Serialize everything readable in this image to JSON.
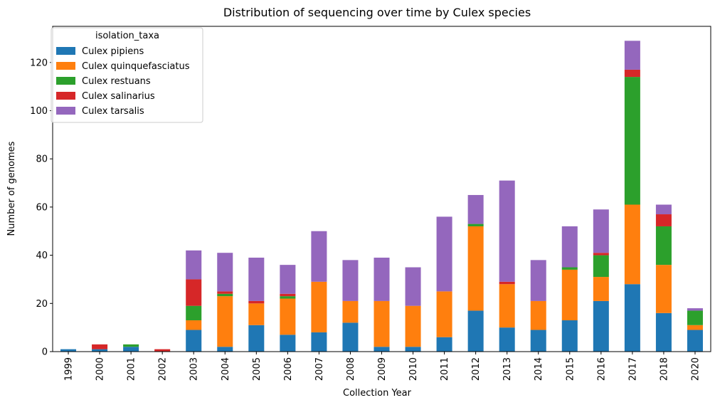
{
  "chart_data": {
    "type": "bar",
    "stacked": true,
    "title": "Distribution of sequencing over time by Culex species",
    "xlabel": "Collection Year",
    "ylabel": "Number of genomes",
    "ylim": [
      0,
      135
    ],
    "yticks": [
      0,
      20,
      40,
      60,
      80,
      100,
      120
    ],
    "grid": false,
    "legend": {
      "title": "isolation_taxa",
      "placement": "top-left"
    },
    "categories": [
      "1999",
      "2000",
      "2001",
      "2002",
      "2003",
      "2004",
      "2005",
      "2006",
      "2007",
      "2008",
      "2009",
      "2010",
      "2011",
      "2012",
      "2013",
      "2014",
      "2015",
      "2016",
      "2017",
      "2018",
      "2020"
    ],
    "series": [
      {
        "name": "Culex pipiens",
        "color": "#1f77b4",
        "values": [
          1,
          1,
          2,
          0,
          9,
          2,
          11,
          7,
          8,
          12,
          2,
          2,
          6,
          17,
          10,
          9,
          13,
          21,
          28,
          16,
          9
        ]
      },
      {
        "name": "Culex quinquefasciatus",
        "color": "#ff7f0e",
        "values": [
          0,
          0,
          0,
          0,
          4,
          21,
          9,
          15,
          21,
          9,
          19,
          17,
          19,
          35,
          18,
          12,
          21,
          10,
          33,
          20,
          2
        ]
      },
      {
        "name": "Culex restuans",
        "color": "#2ca02c",
        "values": [
          0,
          0,
          1,
          0,
          6,
          1,
          0,
          1,
          0,
          0,
          0,
          0,
          0,
          1,
          0,
          0,
          1,
          9,
          53,
          16,
          6
        ]
      },
      {
        "name": "Culex salinarius",
        "color": "#d62728",
        "values": [
          0,
          2,
          0,
          1,
          11,
          1,
          1,
          1,
          0,
          0,
          0,
          0,
          0,
          0,
          1,
          0,
          0,
          1,
          3,
          5,
          0
        ]
      },
      {
        "name": "Culex tarsalis",
        "color": "#9467bd",
        "values": [
          0,
          0,
          0,
          0,
          12,
          16,
          18,
          12,
          21,
          17,
          18,
          16,
          31,
          12,
          42,
          17,
          17,
          18,
          12,
          4,
          1
        ]
      }
    ]
  }
}
